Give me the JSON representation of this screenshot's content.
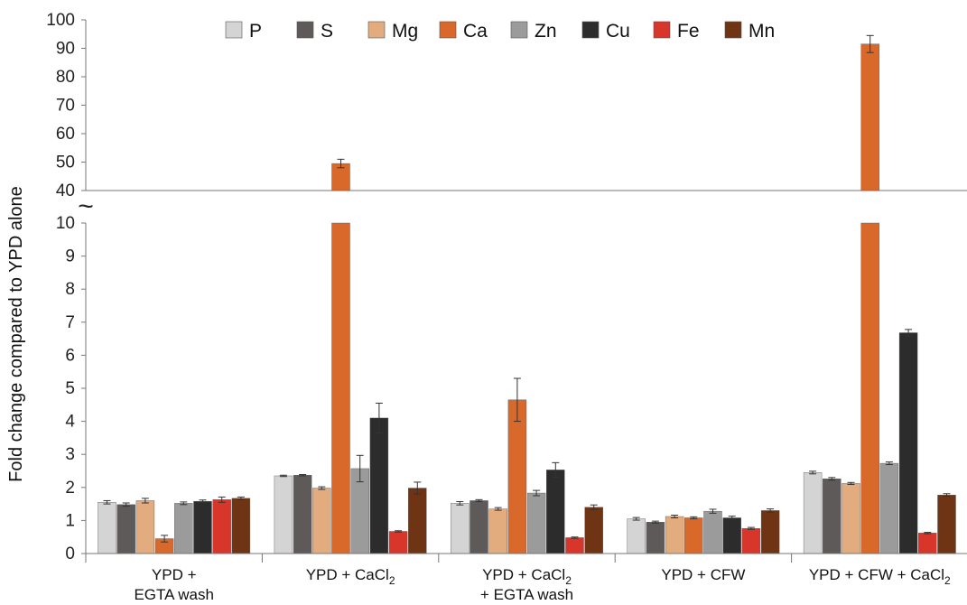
{
  "chart_data": {
    "type": "bar",
    "ylabel": "Fold change compared to YPD alone",
    "axis_break": {
      "symbol": "~",
      "lower_range": [
        0,
        10
      ],
      "upper_range": [
        40,
        100
      ]
    },
    "lower_ticks": [
      "0",
      "1",
      "2",
      "3",
      "4",
      "5",
      "6",
      "7",
      "8",
      "9",
      "10"
    ],
    "upper_ticks": [
      "40",
      "50",
      "60",
      "70",
      "80",
      "90",
      "100"
    ],
    "categories": [
      {
        "line1": "YPD +",
        "line2": "EGTA wash"
      },
      {
        "line1": "YPD + CaCl",
        "sub": "2"
      },
      {
        "line1": "YPD + CaCl",
        "sub": "2",
        "line2": "+ EGTA  wash"
      },
      {
        "line1": "YPD + CFW"
      },
      {
        "line1": "YPD + CFW + CaCl",
        "sub": "2"
      }
    ],
    "series": [
      {
        "name": "P",
        "color": "#d4d4d4",
        "values": [
          1.55,
          2.35,
          1.52,
          1.05,
          2.45
        ],
        "errors": [
          0.05,
          0.02,
          0.05,
          0.04,
          0.04
        ]
      },
      {
        "name": "S",
        "color": "#5f5a5a",
        "values": [
          1.48,
          2.37,
          1.6,
          0.95,
          2.26
        ],
        "errors": [
          0.05,
          0.02,
          0.03,
          0.03,
          0.04
        ]
      },
      {
        "name": "Mg",
        "color": "#e2ac7f",
        "values": [
          1.6,
          1.98,
          1.35,
          1.12,
          2.12
        ],
        "errors": [
          0.07,
          0.04,
          0.04,
          0.04,
          0.03
        ]
      },
      {
        "name": "Ca",
        "color": "#d9692b",
        "values": [
          0.45,
          49.5,
          4.65,
          1.08,
          91.5
        ],
        "errors": [
          0.1,
          1.5,
          0.65,
          0.03,
          3.0
        ]
      },
      {
        "name": "Zn",
        "color": "#9b9b9b",
        "values": [
          1.52,
          2.57,
          1.83,
          1.28,
          2.73
        ],
        "errors": [
          0.04,
          0.4,
          0.08,
          0.06,
          0.04
        ]
      },
      {
        "name": "Cu",
        "color": "#2c2c2c",
        "values": [
          1.58,
          4.1,
          2.53,
          1.08,
          6.68
        ],
        "errors": [
          0.04,
          0.45,
          0.22,
          0.05,
          0.1
        ]
      },
      {
        "name": "Fe",
        "color": "#d8362b",
        "values": [
          1.63,
          0.67,
          0.48,
          0.76,
          0.62
        ],
        "errors": [
          0.08,
          0.02,
          0.02,
          0.03,
          0.02
        ]
      },
      {
        "name": "Mn",
        "color": "#6e3413",
        "values": [
          1.67,
          1.98,
          1.4,
          1.3,
          1.77
        ],
        "errors": [
          0.04,
          0.18,
          0.07,
          0.05,
          0.04
        ]
      }
    ],
    "legend_placement": "top",
    "grid": false
  }
}
